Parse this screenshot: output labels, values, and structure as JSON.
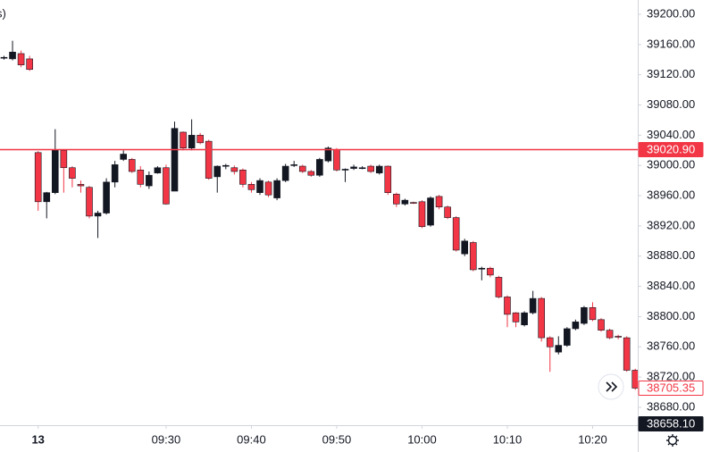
{
  "chart_data": {
    "type": "candlestick",
    "legend_fragment": "s)",
    "up_color": "#131722",
    "down_color": "#f23645",
    "open": [
      39142,
      39141,
      39148,
      39141,
      39017,
      38952,
      38964,
      39020,
      38997,
      38975,
      38971,
      38933,
      38937,
      38978,
      39008,
      39008,
      38994,
      38973,
      38990,
      38997,
      38966,
      39044,
      39023,
      39040,
      39032,
      38985,
      38999,
      38997,
      38994,
      38975,
      38964,
      38978,
      38957,
      38980,
      39000,
      38999,
      38992,
      38987,
      39006,
      39021,
      38994,
      38996,
      38997,
      38999,
      38990,
      38999,
      38962,
      38949,
      38951,
      38952,
      38921,
      38959,
      38945,
      38931,
      38883,
      38898,
      38864,
      38864,
      38852,
      38826,
      38805,
      38789,
      38805,
      38824,
      38772,
      38753,
      38762,
      38784,
      38791,
      38812,
      38796,
      38782,
      38774,
      38772,
      38729
    ],
    "high": [
      39145,
      39165,
      39152,
      39145,
      39019,
      38965,
      39048,
      39021,
      38999,
      38980,
      38973,
      38940,
      38983,
      39006,
      39020,
      39010,
      38999,
      38992,
      38999,
      39001,
      39058,
      39045,
      39061,
      39043,
      39034,
      39000,
      39002,
      39000,
      38996,
      38978,
      38983,
      38980,
      38983,
      39002,
      39006,
      39001,
      38994,
      39010,
      39025,
      39023,
      38996,
      39001,
      38999,
      39001,
      39001,
      39000,
      38964,
      38956,
      38952,
      38954,
      38959,
      38961,
      38947,
      38933,
      38903,
      38900,
      38866,
      38866,
      38854,
      38828,
      38806,
      38807,
      38834,
      38826,
      38774,
      38774,
      38786,
      38796,
      38814,
      38819,
      38798,
      38784,
      38776,
      38774,
      38731
    ],
    "low": [
      39140,
      39139,
      39130,
      39125,
      38940,
      38930,
      38962,
      38964,
      38971,
      38964,
      38930,
      38904,
      38935,
      38971,
      39006,
      38990,
      38971,
      38969,
      38989,
      38948,
      38966,
      39020,
      39020,
      39028,
      38981,
      38964,
      38995,
      38988,
      38971,
      38964,
      38961,
      38958,
      38954,
      38978,
      38998,
      38990,
      38985,
      38985,
      39004,
      38992,
      38978,
      38994,
      38995,
      38990,
      38988,
      38961,
      38945,
      38947,
      38949,
      38917,
      38919,
      38942,
      38929,
      38886,
      38880,
      38860,
      38848,
      38852,
      38824,
      38786,
      38786,
      38787,
      38803,
      38767,
      38727,
      38750,
      38760,
      38782,
      38789,
      38794,
      38780,
      38770,
      38770,
      38727,
      38703
    ],
    "close": [
      39143,
      39150,
      39133,
      39127,
      38952,
      38964,
      39020,
      38997,
      38983,
      38973,
      38933,
      38937,
      38978,
      39001,
      39015,
      38992,
      38975,
      38987,
      38997,
      38949,
      39049,
      39023,
      39040,
      39030,
      38983,
      38999,
      39000,
      38992,
      38975,
      38968,
      38980,
      38961,
      38980,
      38999,
      39001,
      38992,
      38987,
      39008,
      39023,
      38994,
      38995,
      38998,
      38997,
      38992,
      38999,
      38964,
      38949,
      38954,
      38950,
      38919,
      38957,
      38945,
      38931,
      38888,
      38900,
      38862,
      38864,
      38855,
      38826,
      38803,
      38793,
      38805,
      38824,
      38772,
      38760,
      38762,
      38784,
      38793,
      38812,
      38796,
      38782,
      38772,
      38773,
      38729,
      38705.35
    ],
    "xlim": [
      -0.47,
      74.29
    ],
    "xticks": [
      {
        "value": 4,
        "label": "13"
      },
      {
        "value": 19,
        "label": "09:30"
      },
      {
        "value": 29,
        "label": "09:40"
      },
      {
        "value": 39,
        "label": "09:50"
      },
      {
        "value": 49,
        "label": "10:00"
      },
      {
        "value": 59,
        "label": "10:10"
      },
      {
        "value": 69,
        "label": "10:20"
      }
    ],
    "ylim": [
      38656.3,
      39218.9
    ],
    "yticks": [
      {
        "value": 38680,
        "label": "38680.00"
      },
      {
        "value": 38720,
        "label": "38720.00"
      },
      {
        "value": 38760,
        "label": "38760.00"
      },
      {
        "value": 38800,
        "label": "38800.00"
      },
      {
        "value": 38840,
        "label": "38840.00"
      },
      {
        "value": 38880,
        "label": "38880.00"
      },
      {
        "value": 38920,
        "label": "38920.00"
      },
      {
        "value": 38960,
        "label": "38960.00"
      },
      {
        "value": 39000,
        "label": "39000.00"
      },
      {
        "value": 39040,
        "label": "39040.00"
      },
      {
        "value": 39080,
        "label": "39080.00"
      },
      {
        "value": 39120,
        "label": "39120.00"
      },
      {
        "value": 39160,
        "label": "39160.00"
      },
      {
        "value": 39200,
        "label": "39200.00"
      }
    ],
    "price_labels": [
      {
        "value": 39020.9,
        "label": "39020.90",
        "style": "line"
      },
      {
        "value": 38705.35,
        "label": "38705.35",
        "style": "outline"
      },
      {
        "value": 38658.1,
        "label": "38658.10",
        "style": "dark"
      }
    ]
  }
}
